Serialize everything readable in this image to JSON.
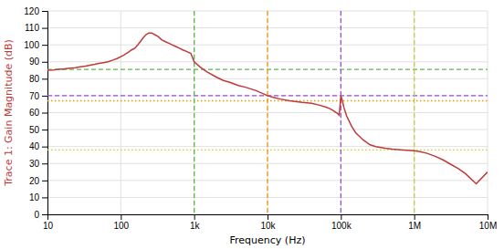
{
  "chart_data": {
    "type": "line",
    "xlabel": "Frequency (Hz)",
    "ylabel": "Trace 1: Gain Magnitude (dB)",
    "log": "x",
    "grid": true,
    "color": "#c0393b",
    "xlim": [
      10,
      10000000
    ],
    "ylim": [
      0,
      120
    ],
    "xticks": [
      10,
      100,
      {
        "value": 1000,
        "label": "1k"
      },
      {
        "value": 10000,
        "label": "10k"
      },
      {
        "value": 100000,
        "label": "100k"
      },
      {
        "value": 1000000,
        "label": "1M"
      },
      {
        "value": 10000000,
        "label": "10M"
      }
    ],
    "yticks": [
      0,
      10,
      20,
      30,
      40,
      50,
      60,
      70,
      80,
      90,
      100,
      110,
      120
    ],
    "vlines": [
      {
        "x": 1000,
        "color": "#55bb44",
        "line_style": "dashed"
      },
      {
        "x": 10000,
        "color": "#ee9900",
        "line_style": "dashed"
      },
      {
        "x": 100000,
        "color": "#9955cc",
        "line_style": "dashed"
      },
      {
        "x": 1000000,
        "color": "#cccc33",
        "line_style": "dashed"
      }
    ],
    "hlines": [
      {
        "y": 85.5,
        "color": "#55bb44",
        "line_style": "dashed"
      },
      {
        "y": 70.0,
        "color": "#9955cc",
        "line_style": "dashed"
      },
      {
        "y": 67.0,
        "color": "#ee9900",
        "line_style": "dotted"
      },
      {
        "y": 38.0,
        "color": "#cccc33",
        "line_style": "dotted"
      }
    ],
    "x": [
      10,
      12,
      14,
      17,
      20,
      24,
      28,
      33,
      38,
      44,
      50,
      58,
      67,
      78,
      90,
      100,
      110,
      120,
      130,
      140,
      155,
      170,
      185,
      200,
      220,
      240,
      265,
      290,
      320,
      360,
      400,
      450,
      500,
      560,
      630,
      700,
      800,
      900,
      1000,
      1200,
      1500,
      2000,
      2500,
      3000,
      4000,
      5000,
      7000,
      10000,
      12000,
      15000,
      20000,
      25000,
      30000,
      40000,
      50000,
      60000,
      70000,
      80000,
      90000,
      95000,
      100000,
      105000,
      110000,
      120000,
      140000,
      160000,
      200000,
      250000,
      300000,
      400000,
      500000,
      700000,
      1000000,
      1200000,
      1500000,
      2000000,
      2500000,
      3000000,
      4000000,
      5000000,
      7000000,
      10000000
    ],
    "values": [
      85,
      85.2,
      85.5,
      85.8,
      86.2,
      86.5,
      87,
      87.5,
      88,
      88.5,
      89,
      89.5,
      90,
      91,
      92,
      93,
      94,
      95,
      96,
      97,
      98,
      100,
      102,
      104,
      106,
      107,
      107,
      106,
      105,
      103,
      102,
      101,
      100,
      99,
      98,
      97,
      96,
      95,
      90,
      87,
      84,
      81,
      79,
      78,
      76,
      75,
      73,
      70,
      69,
      68,
      67,
      66.5,
      66,
      65.5,
      64.5,
      63.5,
      62.5,
      61,
      59.5,
      58.5,
      70,
      67,
      63,
      58,
      52,
      48,
      44,
      41,
      40,
      39,
      38.5,
      38,
      37.5,
      37,
      36,
      34,
      32,
      30,
      27,
      24,
      18,
      25
    ]
  }
}
